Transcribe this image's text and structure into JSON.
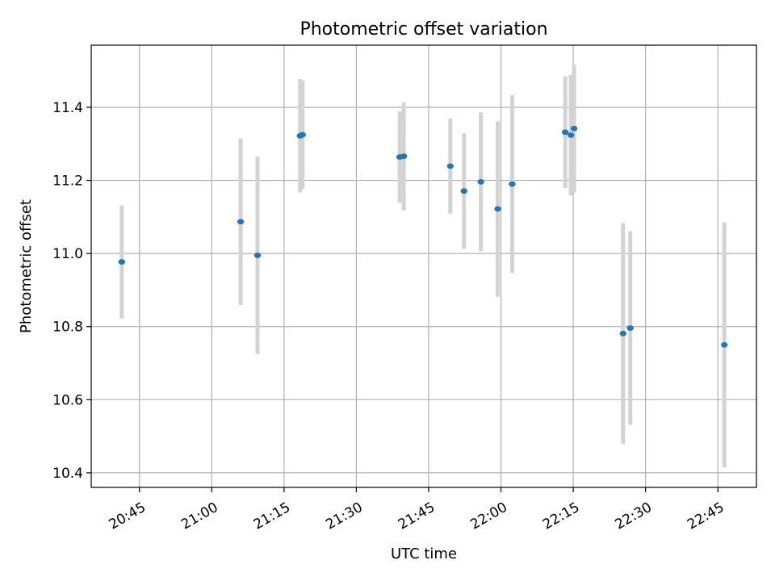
{
  "chart_data": {
    "type": "scatter",
    "title": "Photometric offset variation",
    "xlabel": "UTC time",
    "ylabel": "Photometric offset",
    "x_ticks": [
      "20:45",
      "21:00",
      "21:15",
      "21:30",
      "21:45",
      "22:00",
      "22:15",
      "22:30",
      "22:45"
    ],
    "y_ticks": [
      "10.4",
      "10.6",
      "10.8",
      "11.0",
      "11.2",
      "11.4"
    ],
    "xlim": [
      "20:35",
      "22:53"
    ],
    "ylim": [
      10.36,
      11.57
    ],
    "grid": true,
    "error_bar_color": "#d3d3d3",
    "point_color": "#1f77b4",
    "points": [
      {
        "x": "20:41:20",
        "y": 10.977,
        "err": 0.155
      },
      {
        "x": "21:06:00",
        "y": 11.087,
        "err": 0.228
      },
      {
        "x": "21:09:30",
        "y": 10.995,
        "err": 0.27
      },
      {
        "x": "21:18:20",
        "y": 11.322,
        "err": 0.155
      },
      {
        "x": "21:18:50",
        "y": 11.325,
        "err": 0.148
      },
      {
        "x": "21:39:00",
        "y": 11.264,
        "err": 0.125
      },
      {
        "x": "21:39:50",
        "y": 11.266,
        "err": 0.148
      },
      {
        "x": "21:49:30",
        "y": 11.239,
        "err": 0.13
      },
      {
        "x": "21:52:20",
        "y": 11.171,
        "err": 0.158
      },
      {
        "x": "21:55:50",
        "y": 11.196,
        "err": 0.19
      },
      {
        "x": "21:59:20",
        "y": 11.122,
        "err": 0.24
      },
      {
        "x": "22:02:20",
        "y": 11.19,
        "err": 0.243
      },
      {
        "x": "22:13:20",
        "y": 11.332,
        "err": 0.153
      },
      {
        "x": "22:14:30",
        "y": 11.324,
        "err": 0.165
      },
      {
        "x": "22:15:10",
        "y": 11.342,
        "err": 0.175
      },
      {
        "x": "22:25:20",
        "y": 10.781,
        "err": 0.302
      },
      {
        "x": "22:26:50",
        "y": 10.796,
        "err": 0.265
      },
      {
        "x": "22:46:20",
        "y": 10.75,
        "err": 0.335
      }
    ]
  }
}
